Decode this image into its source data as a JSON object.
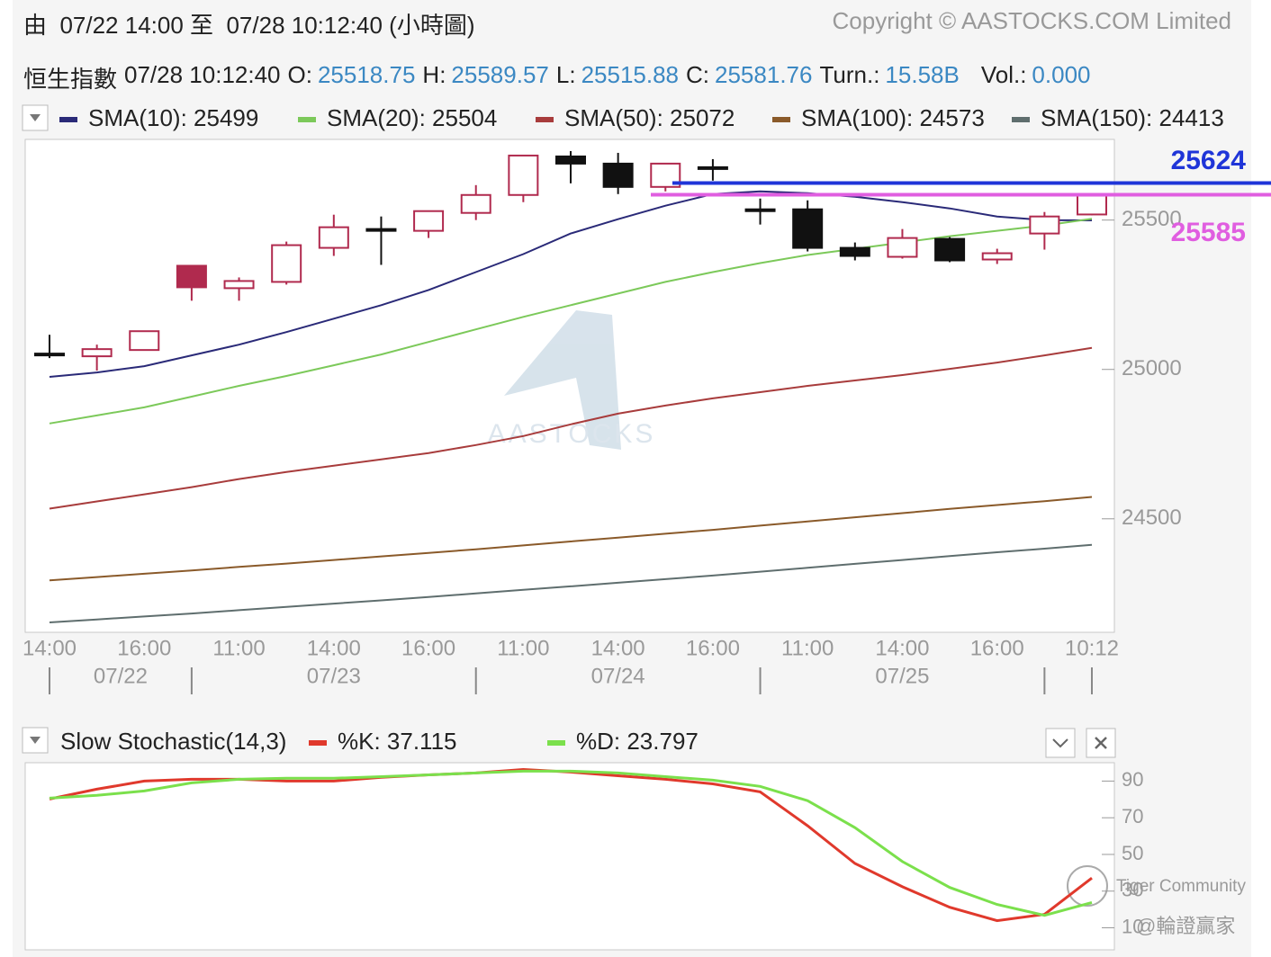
{
  "header": {
    "range": "由  07/22 14:00 至  07/28 10:12:40 (小時圖)",
    "copyright": "Copyright © AASTOCKS.COM Limited"
  },
  "quote": {
    "name": "恒生指數",
    "time": "07/28 10:12:40",
    "fields": [
      {
        "label": "O:",
        "value": "25518.75"
      },
      {
        "label": "H:",
        "value": "25589.57"
      },
      {
        "label": "L:",
        "value": "25515.88"
      },
      {
        "label": "C:",
        "value": "25581.76"
      },
      {
        "label": "Turn.:",
        "value": "15.58B"
      },
      {
        "label": "Vol.:",
        "value": "0.000"
      }
    ]
  },
  "watermarks": {
    "logo": "AASTOCKS",
    "community": "Tiger Community",
    "author": "@輪證贏家"
  },
  "chart_data": [
    {
      "type": "candlestick",
      "categories": [
        "14:00",
        null,
        "16:00",
        null,
        "11:00",
        null,
        "14:00",
        null,
        "16:00",
        null,
        "11:00",
        null,
        "14:00",
        null,
        "16:00",
        null,
        "11:00",
        null,
        "14:00",
        null,
        "16:00",
        null,
        "10:12"
      ],
      "date_labels": [
        "07/22",
        "07/23",
        "07/24",
        "07/25"
      ],
      "candles": {
        "open": [
          25053,
          25044,
          25065,
          25347,
          25272,
          25293,
          25407,
          25470,
          25464,
          25524,
          25584,
          25713,
          25689,
          25611,
          25677,
          25536,
          25536,
          25407,
          25377,
          25437,
          25368,
          25455,
          25518.75
        ],
        "high": [
          25116,
          25083,
          25130,
          25350,
          25308,
          25428,
          25518,
          25512,
          25530,
          25617,
          25716,
          25731,
          25725,
          25689,
          25704,
          25572,
          25566,
          25425,
          25470,
          25443,
          25404,
          25527,
          25589.57
        ],
        "low": [
          25038,
          24996,
          25063,
          25230,
          25230,
          25284,
          25380,
          25350,
          25440,
          25500,
          25560,
          25623,
          25587,
          25596,
          25632,
          25485,
          25395,
          25365,
          25371,
          25359,
          25353,
          25401,
          25515.88
        ],
        "close": [
          25050,
          25068,
          25128,
          25275,
          25296,
          25416,
          25476,
          25464,
          25530,
          25584,
          25716,
          25689,
          25611,
          25689,
          25671,
          25530,
          25407,
          25380,
          25440,
          25365,
          25389,
          25512,
          25581.76
        ]
      },
      "up_color": "#b02a4e",
      "down_color": "#111111",
      "series": [
        {
          "name": "SMA(10): 25499",
          "color": "#2a2a78",
          "values": [
            24975,
            24990,
            25011,
            25047,
            25083,
            25125,
            25170,
            25215,
            25266,
            25326,
            25386,
            25455,
            25503,
            25548,
            25587,
            25596,
            25590,
            25578,
            25560,
            25539,
            25512,
            25500,
            25499
          ]
        },
        {
          "name": "SMA(20): 25504",
          "color": "#7cc95a",
          "values": [
            24819,
            24846,
            24873,
            24909,
            24945,
            24978,
            25014,
            25050,
            25092,
            25134,
            25176,
            25215,
            25254,
            25293,
            25326,
            25356,
            25383,
            25404,
            25425,
            25446,
            25464,
            25482,
            25504
          ]
        },
        {
          "name": "SMA(50): 25072",
          "color": "#a83c3c",
          "values": [
            24534,
            24558,
            24582,
            24606,
            24633,
            24657,
            24678,
            24699,
            24720,
            24747,
            24777,
            24816,
            24852,
            24879,
            24903,
            24924,
            24945,
            24963,
            24981,
            25002,
            25023,
            25047,
            25072
          ]
        },
        {
          "name": "SMA(100): 24573",
          "color": "#8a5a2a",
          "values": [
            24294,
            24305,
            24316,
            24327,
            24339,
            24350,
            24362,
            24374,
            24386,
            24398,
            24411,
            24424,
            24437,
            24450,
            24463,
            24477,
            24491,
            24505,
            24519,
            24533,
            24546,
            24559,
            24573
          ]
        },
        {
          "name": "SMA(150): 24413",
          "color": "#5f6e6e",
          "values": [
            24153,
            24163,
            24173,
            24183,
            24194,
            24205,
            24216,
            24227,
            24238,
            24250,
            24262,
            24274,
            24286,
            24298,
            24310,
            24323,
            24336,
            24349,
            24362,
            24375,
            24388,
            24400,
            24413
          ]
        }
      ],
      "reference_lines": [
        {
          "value": 25624,
          "color": "#1f35d8"
        },
        {
          "value": 25585,
          "color": "#e05ee0"
        }
      ],
      "ylim": [
        24120,
        25770
      ],
      "yticks": [
        24500,
        25000,
        25500
      ]
    },
    {
      "type": "line",
      "title": "Slow Stochastic(14,3)",
      "series": [
        {
          "name": "%K: 37.115",
          "color": "#e0392c",
          "values": [
            80.2,
            85.6,
            90,
            91,
            91,
            90,
            90,
            92,
            93.4,
            94.4,
            96.3,
            94.9,
            92.9,
            91,
            88.5,
            84.1,
            65.6,
            45.1,
            32.4,
            21.2,
            13.9,
            17.3,
            37.115
          ]
        },
        {
          "name": "%D: 23.797",
          "color": "#7be04c",
          "values": [
            80.7,
            82.2,
            84.6,
            89,
            91,
            91.5,
            91.5,
            92.4,
            93.4,
            94.4,
            95.4,
            95.4,
            94.4,
            92.4,
            90.5,
            87.1,
            79.3,
            64.6,
            46.1,
            32,
            22.7,
            16.8,
            23.797
          ]
        }
      ],
      "ylim": [
        -2,
        100
      ],
      "yticks": [
        10,
        30,
        50,
        70,
        90
      ]
    }
  ]
}
